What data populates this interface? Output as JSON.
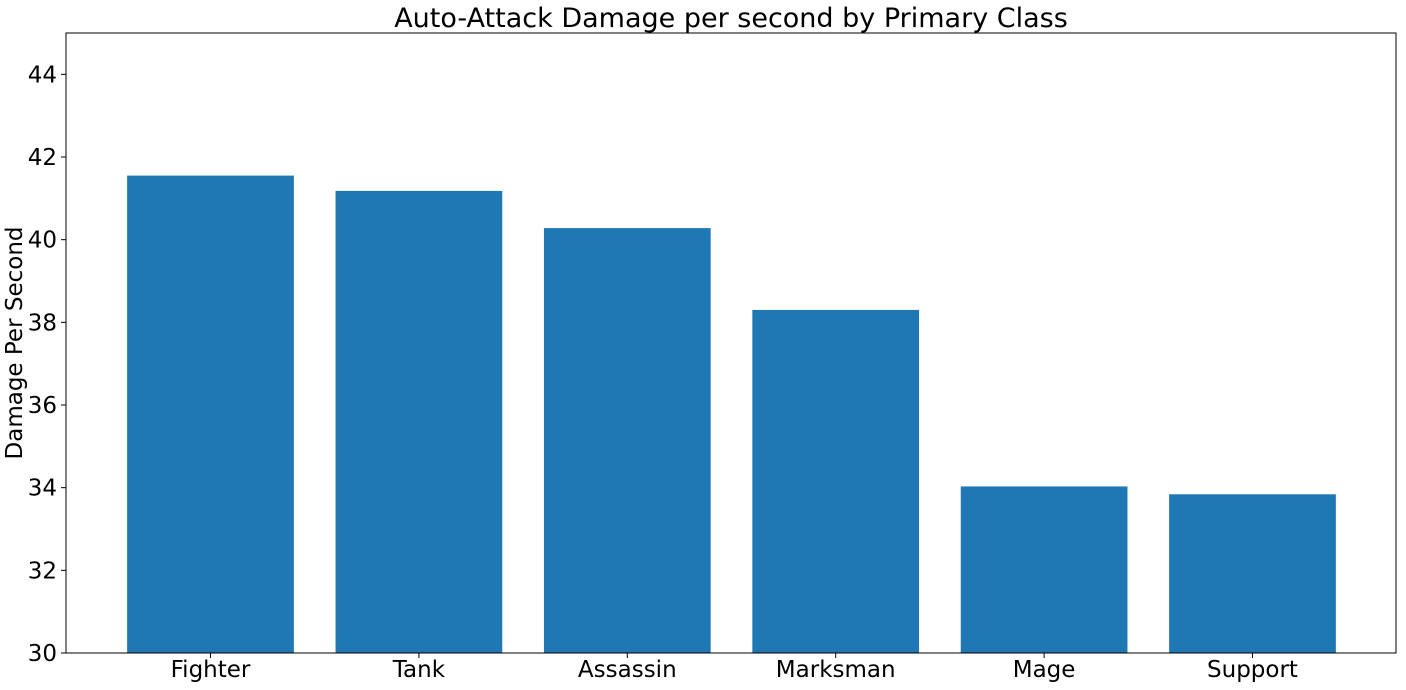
{
  "chart_data": {
    "type": "bar",
    "title": "Auto-Attack Damage per second by Primary Class",
    "xlabel": "",
    "ylabel": "Damage Per Second",
    "categories": [
      "Fighter",
      "Tank",
      "Assassin",
      "Marksman",
      "Mage",
      "Support"
    ],
    "values": [
      41.55,
      41.18,
      40.28,
      38.3,
      34.03,
      33.84
    ],
    "ylim": [
      30,
      45
    ],
    "yticks": [
      30,
      32,
      34,
      36,
      38,
      40,
      42,
      44
    ],
    "grid": false,
    "legend": "none",
    "colors": {
      "bar": "#1f77b4",
      "axis": "#000000",
      "background": "#ffffff"
    }
  }
}
